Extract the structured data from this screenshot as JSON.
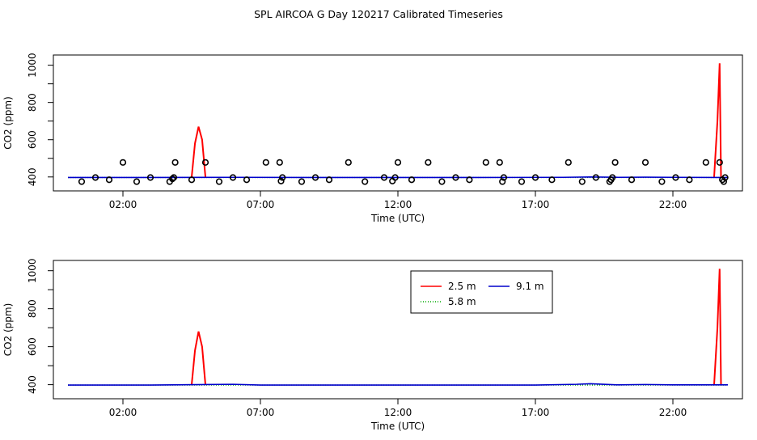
{
  "page_title": "SPL AIRCOA G  Day 120217  Calibrated Timeseries",
  "chart_data": [
    {
      "type": "line",
      "name": "top-panel",
      "xlabel": "Time (UTC)",
      "ylabel": "CO2 (ppm)",
      "xlim": [
        0,
        24
      ],
      "ylim": [
        360,
        1020
      ],
      "x_ticks": [
        2,
        7,
        12,
        17,
        22
      ],
      "x_tick_labels": [
        "02:00",
        "07:00",
        "12:00",
        "17:00",
        "22:00"
      ],
      "y_ticks": [
        400,
        600,
        800,
        1000
      ],
      "y_tick_labels": [
        "400",
        "600",
        "800",
        "1000"
      ],
      "colors": {
        "red": "#ff0000",
        "blue": "#0000cc",
        "green": "#00aa00"
      },
      "series": [
        {
          "color": "red",
          "x": [
            4.5,
            4.62,
            4.75,
            4.88,
            5.0,
            23.5,
            23.62,
            23.7,
            23.75
          ],
          "y": [
            400,
            580,
            670,
            600,
            400,
            400,
            700,
            1010,
            400
          ]
        },
        {
          "color": "green",
          "x": [
            0,
            24
          ],
          "y": [
            397,
            397
          ]
        },
        {
          "color": "blue",
          "x": [
            0,
            3,
            6,
            9,
            12,
            15,
            18,
            19,
            20,
            21,
            22,
            24
          ],
          "y": [
            397,
            397,
            398,
            397,
            397,
            397,
            398,
            400,
            398,
            399,
            398,
            397
          ]
        }
      ],
      "points": {
        "x": [
          0.5,
          1.0,
          1.5,
          2.0,
          2.5,
          3.0,
          3.7,
          3.8,
          3.85,
          3.9,
          4.5,
          5.0,
          5.5,
          6.0,
          6.5,
          7.2,
          7.7,
          7.75,
          7.8,
          8.5,
          9.0,
          9.5,
          10.2,
          10.8,
          11.5,
          11.8,
          11.9,
          12.0,
          12.5,
          13.1,
          13.6,
          14.1,
          14.6,
          15.2,
          15.7,
          15.8,
          15.85,
          16.5,
          17.0,
          17.6,
          18.2,
          18.7,
          19.2,
          19.7,
          19.75,
          19.8,
          19.9,
          20.5,
          21.0,
          21.6,
          22.1,
          22.6,
          23.2,
          23.7,
          23.8,
          23.85,
          23.9
        ],
        "y": [
          375,
          397,
          385,
          478,
          375,
          397,
          375,
          390,
          397,
          478,
          385,
          478,
          375,
          397,
          385,
          478,
          478,
          378,
          397,
          375,
          397,
          385,
          478,
          375,
          397,
          378,
          397,
          478,
          385,
          478,
          375,
          397,
          385,
          478,
          478,
          375,
          397,
          375,
          397,
          385,
          478,
          375,
          397,
          375,
          385,
          397,
          478,
          385,
          478,
          375,
          397,
          385,
          478,
          478,
          385,
          375,
          397
        ]
      }
    },
    {
      "type": "line",
      "name": "bottom-panel",
      "xlabel": "Time (UTC)",
      "ylabel": "CO2 (ppm)",
      "xlim": [
        0,
        24
      ],
      "ylim": [
        360,
        1020
      ],
      "x_ticks": [
        2,
        7,
        12,
        17,
        22
      ],
      "x_tick_labels": [
        "02:00",
        "07:00",
        "12:00",
        "17:00",
        "22:00"
      ],
      "y_ticks": [
        400,
        600,
        800,
        1000
      ],
      "y_tick_labels": [
        "400",
        "600",
        "800",
        "1000"
      ],
      "colors": {
        "red": "#ff0000",
        "blue": "#0000cc",
        "green": "#00aa00"
      },
      "legend": {
        "position": "top-center",
        "entries": [
          {
            "label": "2.5 m",
            "color": "red"
          },
          {
            "label": "9.1 m",
            "color": "blue"
          },
          {
            "label": "5.8 m",
            "color": "green",
            "dash": "dotted"
          }
        ]
      },
      "series": [
        {
          "name": "2.5 m",
          "color": "red",
          "x": [
            4.5,
            4.62,
            4.75,
            4.88,
            5.0,
            23.5,
            23.62,
            23.7,
            23.75
          ],
          "y": [
            400,
            580,
            680,
            600,
            400,
            400,
            700,
            1010,
            400
          ]
        },
        {
          "name": "5.8 m",
          "color": "green",
          "x": [
            0,
            24
          ],
          "y": [
            398,
            398
          ]
        },
        {
          "name": "9.1 m",
          "color": "blue",
          "x": [
            0,
            3,
            6,
            7,
            9,
            12,
            15,
            17,
            18.5,
            19,
            20,
            21,
            22,
            24
          ],
          "y": [
            398,
            398,
            402,
            398,
            398,
            398,
            398,
            398,
            402,
            405,
            399,
            401,
            399,
            399
          ]
        }
      ]
    }
  ]
}
